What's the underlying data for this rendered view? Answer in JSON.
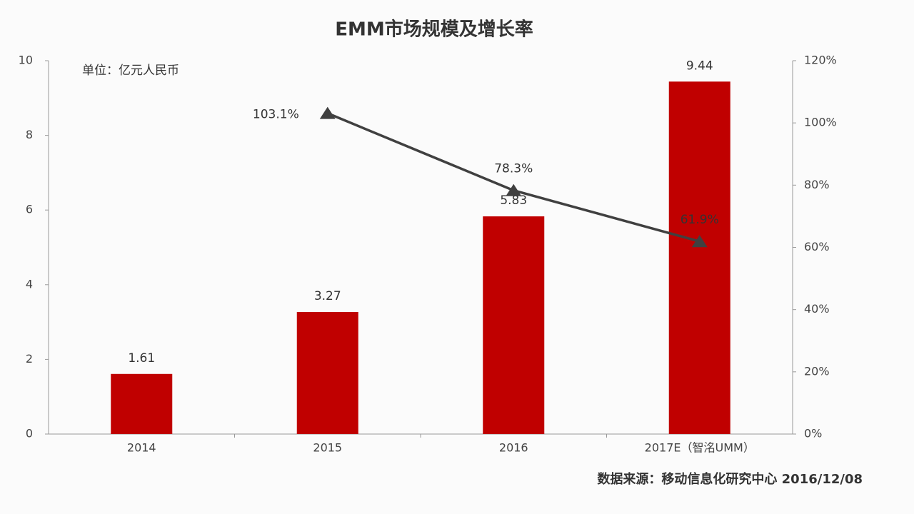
{
  "chart_data": {
    "type": "bar",
    "title": "EMM市场规模及增长率",
    "unit_note": "单位：亿元人民币",
    "source": "数据来源：移动信息化研究中心 2016/12/08",
    "categories": [
      "2014",
      "2015",
      "2016",
      "2017E（智洺UMM）"
    ],
    "series": [
      {
        "type": "bar",
        "color": "#c00000",
        "values": [
          1.61,
          3.27,
          5.83,
          9.44
        ]
      },
      {
        "type": "line",
        "axis": "y2",
        "color": "#404040",
        "values": [
          null,
          103.1,
          78.3,
          61.9
        ],
        "value_labels": [
          null,
          "103.1%",
          "78.3%",
          "61.9%"
        ]
      }
    ],
    "ylim": [
      0,
      10
    ],
    "yticks": [
      0,
      2,
      4,
      6,
      8,
      10
    ],
    "y2lim": [
      0,
      120
    ],
    "y2ticks": [
      {
        "value": 0,
        "label": "0%"
      },
      {
        "value": 20,
        "label": "20%"
      },
      {
        "value": 40,
        "label": "40%"
      },
      {
        "value": 60,
        "label": "60%"
      },
      {
        "value": 80,
        "label": "80%"
      },
      {
        "value": 100,
        "label": "100%"
      },
      {
        "value": 120,
        "label": "120%"
      }
    ]
  }
}
